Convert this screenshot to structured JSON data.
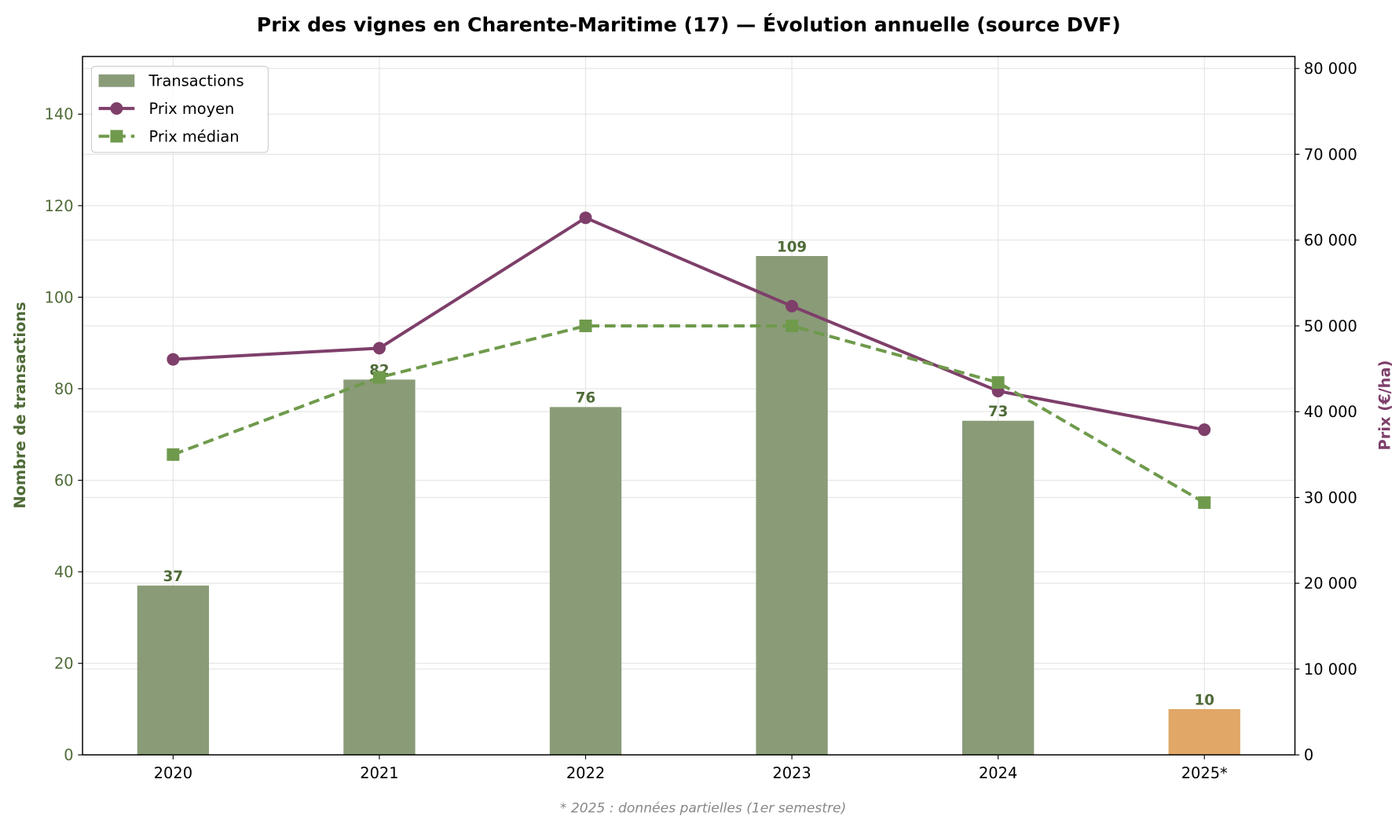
{
  "chart_data": {
    "type": "bar+line",
    "title": "Prix des vignes en Charente-Maritime (17) — Évolution annuelle (source DVF)",
    "footnote": "* 2025 : données partielles (1er semestre)",
    "categories": [
      "2020",
      "2021",
      "2022",
      "2023",
      "2024",
      "2025*"
    ],
    "left_axis": {
      "label": "Nombre de transactions",
      "ylim": [
        0,
        152.6
      ],
      "ticks": [
        0,
        20,
        40,
        60,
        80,
        100,
        120,
        140
      ],
      "color": "#4f6b38"
    },
    "right_axis": {
      "label": "Prix (€/ha)",
      "ylim": [
        0,
        81400
      ],
      "ticks": [
        0,
        10000,
        20000,
        30000,
        40000,
        50000,
        60000,
        70000,
        80000
      ],
      "tick_labels": [
        "0",
        "10 000",
        "20 000",
        "30 000",
        "40 000",
        "50 000",
        "60 000",
        "70 000",
        "80 000"
      ],
      "color": "#7e3f6a"
    },
    "grid": true,
    "legend_position": "top-left",
    "series": [
      {
        "name": "Transactions",
        "type": "bar",
        "axis": "left",
        "values": [
          37,
          82,
          76,
          109,
          73,
          10
        ],
        "data_labels": [
          "37",
          "82",
          "76",
          "109",
          "73",
          "10"
        ],
        "color": "#8a9b78",
        "partial_color": "#e0a767"
      },
      {
        "name": "Prix moyen",
        "type": "line",
        "axis": "right",
        "marker": "circle",
        "style": "solid",
        "values": [
          46100,
          47400,
          62600,
          52300,
          42400,
          37900
        ],
        "color": "#7e3f6a"
      },
      {
        "name": "Prix médian",
        "type": "line",
        "axis": "right",
        "marker": "square",
        "style": "dashed",
        "values": [
          35000,
          44000,
          50000,
          50000,
          43400,
          29400
        ],
        "color": "#6f9a4c"
      }
    ]
  }
}
